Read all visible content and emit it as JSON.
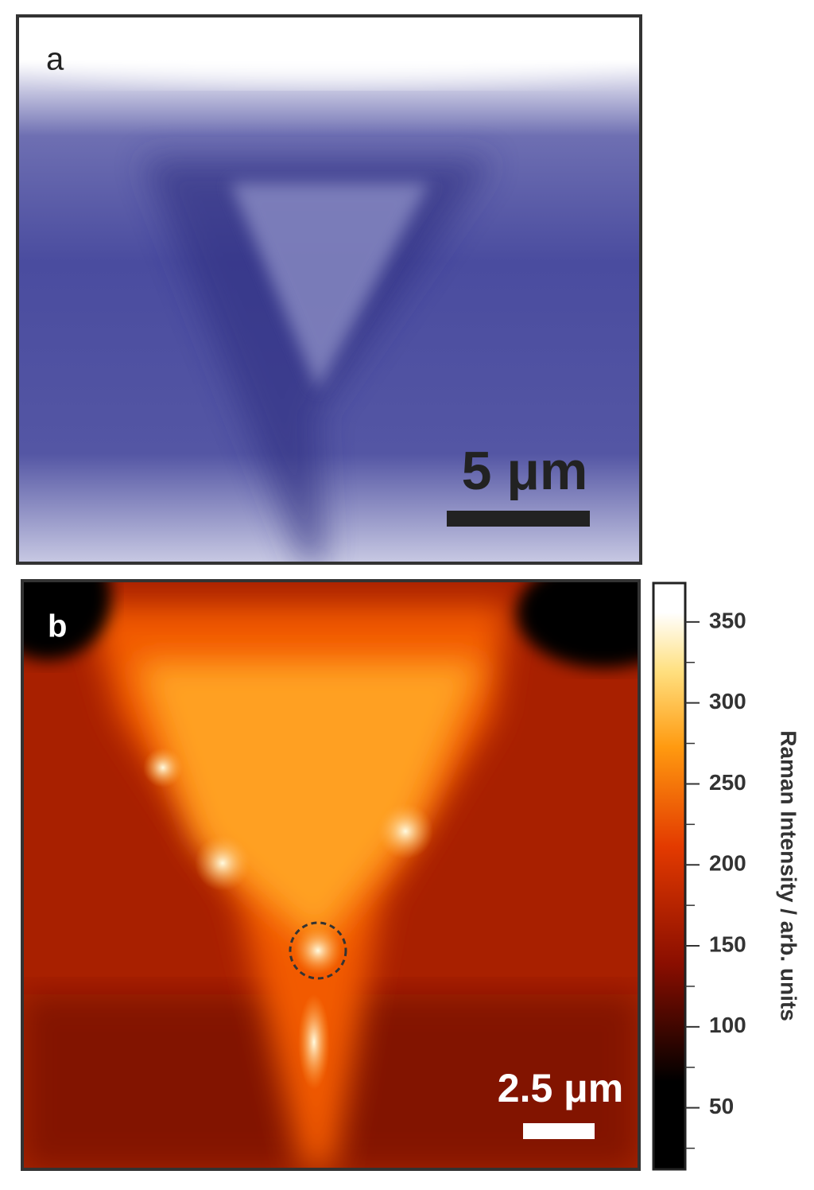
{
  "panels": [
    {
      "label": "a",
      "scale_bar": "5 μm"
    },
    {
      "label": "b",
      "scale_bar": "2.5 μm"
    }
  ],
  "colorbar": {
    "label": "Raman Intensity / arb. units",
    "lim": [
      12,
      374
    ],
    "ticks": [
      50,
      100,
      150,
      200,
      250,
      300,
      350
    ],
    "minor_ticks": [
      25,
      75,
      125,
      175,
      225,
      275,
      325
    ]
  }
}
